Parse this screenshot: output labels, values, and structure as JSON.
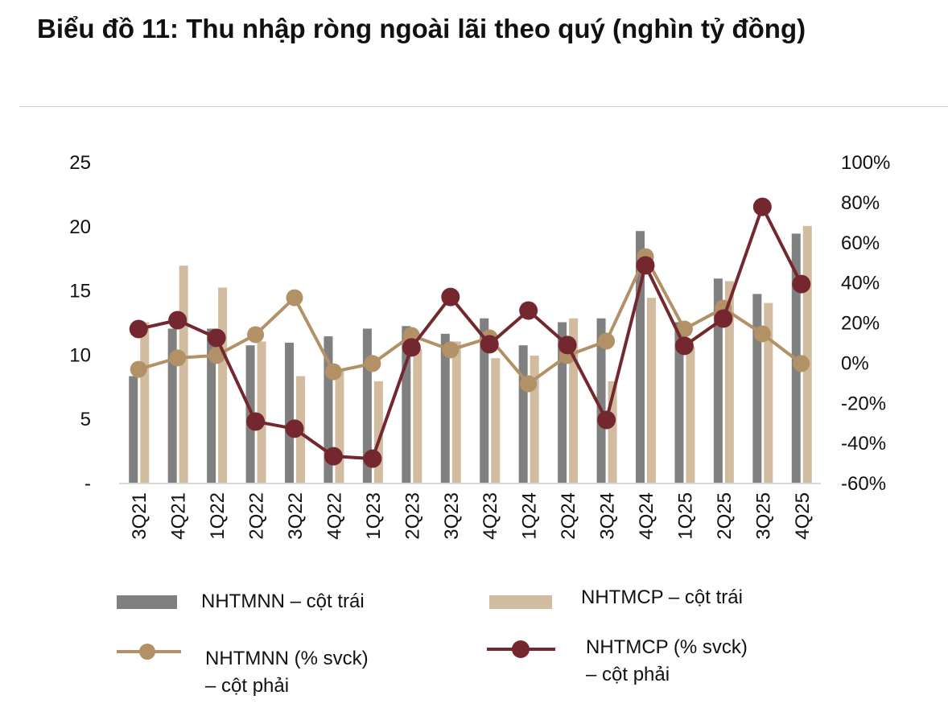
{
  "title": "Biểu đồ 11: Thu nhập ròng ngoài lãi theo quý (nghìn tỷ đồng)",
  "chart_data": {
    "type": "bar+line",
    "title": "Biểu đồ 11: Thu nhập ròng ngoài lãi theo quý (nghìn tỷ đồng)",
    "categories": [
      "3Q21",
      "4Q21",
      "1Q22",
      "2Q22",
      "3Q22",
      "4Q22",
      "1Q23",
      "2Q23",
      "3Q23",
      "4Q23",
      "1Q24",
      "2Q24",
      "3Q24",
      "4Q24",
      "1Q25",
      "2Q25",
      "3Q25",
      "4Q25"
    ],
    "y_left": {
      "ylim": [
        0,
        25
      ],
      "ticks": [
        0,
        5,
        10,
        15,
        20,
        25
      ],
      "tick_labels": [
        "-",
        "5",
        "10",
        "15",
        "20",
        "25"
      ]
    },
    "y_right": {
      "ylim": [
        -60,
        100
      ],
      "ticks": [
        -60,
        -40,
        -20,
        0,
        20,
        40,
        60,
        80,
        100
      ],
      "tick_labels": [
        "-60%",
        "-40%",
        "-20%",
        "0%",
        "20%",
        "40%",
        "60%",
        "80%",
        "100%"
      ]
    },
    "grid": false,
    "legend": "bottom",
    "series": [
      {
        "name": "NHTMNN – cột trái",
        "type": "bar",
        "axis": "left",
        "color": "#808080",
        "values": [
          8.3,
          12.0,
          12.0,
          10.7,
          10.9,
          11.4,
          12.0,
          12.2,
          11.6,
          12.8,
          10.7,
          12.5,
          12.8,
          19.6,
          12.5,
          15.9,
          14.7,
          19.4
        ]
      },
      {
        "name": "NHTMCP – cột trái",
        "type": "bar",
        "axis": "left",
        "color": "#d2bca0",
        "values": [
          12.5,
          16.9,
          15.2,
          11.0,
          8.3,
          8.9,
          7.9,
          10.4,
          11.0,
          9.7,
          9.9,
          12.8,
          7.9,
          14.4,
          10.6,
          15.7,
          14.0,
          20.0
        ]
      },
      {
        "name": "NHTMNN (% svck) – cột phải",
        "type": "line",
        "axis": "right",
        "color": "#b39167",
        "values": [
          -3.5,
          2.2,
          3.4,
          13.8,
          32.2,
          -4.7,
          -0.6,
          13.4,
          6.2,
          12.2,
          -10.7,
          3.4,
          10.6,
          52.7,
          16.6,
          27.0,
          14.2,
          -0.6
        ]
      },
      {
        "name": "NHTMCP (% svck) – cột phải",
        "type": "line",
        "axis": "right",
        "color": "#74272e",
        "values": [
          16.6,
          21.0,
          12.2,
          -29.5,
          -33.1,
          -46.8,
          -48.0,
          7.4,
          32.6,
          9.0,
          25.8,
          8.6,
          -28.7,
          48.3,
          8.2,
          21.8,
          77.5,
          39.0
        ]
      }
    ]
  },
  "legend": {
    "items": [
      "NHTMNN – cột trái",
      "NHTMCP – cột trái",
      "NHTMNN (% svck)",
      "– cột phải",
      "NHTMCP (% svck)",
      "– cột phải"
    ]
  }
}
